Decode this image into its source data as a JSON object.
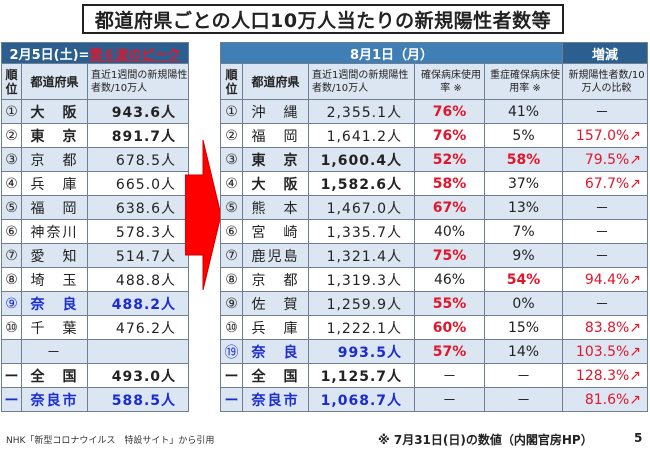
{
  "title": "都道府県ごとの人口10万人当たりの新規陽性者数等",
  "left": {
    "header_date": "2月5日(土)",
    "header_eq": "=",
    "header_peak": "第６波のピーク",
    "col_rank": "順位",
    "col_pref": "都道府県",
    "col_cases": "直近1週間の新規陽性者数/10万人",
    "rows": [
      {
        "rank": "①",
        "pref": "大　阪",
        "cases": "943.6人"
      },
      {
        "rank": "②",
        "pref": "東　京",
        "cases": "891.7人"
      },
      {
        "rank": "③",
        "pref": "京　都",
        "cases": "678.5人"
      },
      {
        "rank": "④",
        "pref": "兵　庫",
        "cases": "665.0人"
      },
      {
        "rank": "⑤",
        "pref": "福　岡",
        "cases": "638.6人"
      },
      {
        "rank": "⑥",
        "pref": "神奈川",
        "cases": "578.3人"
      },
      {
        "rank": "⑦",
        "pref": "愛　知",
        "cases": "514.7人"
      },
      {
        "rank": "⑧",
        "pref": "埼　玉",
        "cases": "488.8人"
      },
      {
        "rank": "⑨",
        "pref": "奈　良",
        "cases": "488.2人"
      },
      {
        "rank": "⑩",
        "pref": "千　葉",
        "cases": "476.2人"
      },
      {
        "rank": "",
        "pref": "－",
        "cases": ""
      },
      {
        "rank": "ー",
        "pref": "全　国",
        "cases": "493.0人"
      },
      {
        "rank": "ー",
        "pref": "奈良市",
        "cases": "588.5人"
      }
    ]
  },
  "right": {
    "header_date": "8月1日（月）",
    "header_change": "増減",
    "col_rank": "順位",
    "col_pref": "都道府県",
    "col_cases": "直近1週間の新規陽性者数/10万人",
    "col_bed": "確保病床使用率 ※",
    "col_severe": "重症確保病床使用率 ※",
    "col_compare": "新規陽性者数/10万人の比較",
    "rows": [
      {
        "rank": "①",
        "pref": "沖　縄",
        "cases": "2,355.1人",
        "bed": "76%",
        "severe": "41%",
        "cmp": "－"
      },
      {
        "rank": "②",
        "pref": "福　岡",
        "cases": "1,641.2人",
        "bed": "76%",
        "severe": "5%",
        "cmp": "157.0%↗"
      },
      {
        "rank": "③",
        "pref": "東　京",
        "cases": "1,600.4人",
        "bed": "52%",
        "severe": "58%",
        "cmp": "79.5%↗"
      },
      {
        "rank": "④",
        "pref": "大　阪",
        "cases": "1,582.6人",
        "bed": "58%",
        "severe": "37%",
        "cmp": "67.7%↗"
      },
      {
        "rank": "⑤",
        "pref": "熊　本",
        "cases": "1,467.0人",
        "bed": "67%",
        "severe": "13%",
        "cmp": "－"
      },
      {
        "rank": "⑥",
        "pref": "宮　崎",
        "cases": "1,335.7人",
        "bed": "40%",
        "severe": "7%",
        "cmp": "－"
      },
      {
        "rank": "⑦",
        "pref": "鹿児島",
        "cases": "1,321.4人",
        "bed": "75%",
        "severe": "9%",
        "cmp": "－"
      },
      {
        "rank": "⑧",
        "pref": "京　都",
        "cases": "1,319.3人",
        "bed": "46%",
        "severe": "54%",
        "cmp": "94.4%↗"
      },
      {
        "rank": "⑨",
        "pref": "佐　賀",
        "cases": "1,259.9人",
        "bed": "55%",
        "severe": "0%",
        "cmp": "－"
      },
      {
        "rank": "⑩",
        "pref": "兵　庫",
        "cases": "1,222.1人",
        "bed": "60%",
        "severe": "15%",
        "cmp": "83.8%↗"
      },
      {
        "rank": "⑲",
        "pref": "奈　良",
        "cases": "993.5人",
        "bed": "57%",
        "severe": "14%",
        "cmp": "103.5%↗"
      },
      {
        "rank": "ー",
        "pref": "全　国",
        "cases": "1,125.7人",
        "bed": "－",
        "severe": "－",
        "cmp": "128.3%↗"
      },
      {
        "rank": "ー",
        "pref": "奈良市",
        "cases": "1,068.7人",
        "bed": "－",
        "severe": "－",
        "cmp": "81.6%↗"
      }
    ]
  },
  "footnote": "NHK「新型コロナウイルス　特設サイト」から引用",
  "source": "※ 7月31日(日)の数値（内閣官房HP）",
  "page": "5",
  "colors": {
    "header_blue": "#3f7fb5",
    "row_blue": "#dbe6f2",
    "red": "#e0162b",
    "blue_text": "#1a2bd1",
    "arrow_red": "#ff0000"
  }
}
